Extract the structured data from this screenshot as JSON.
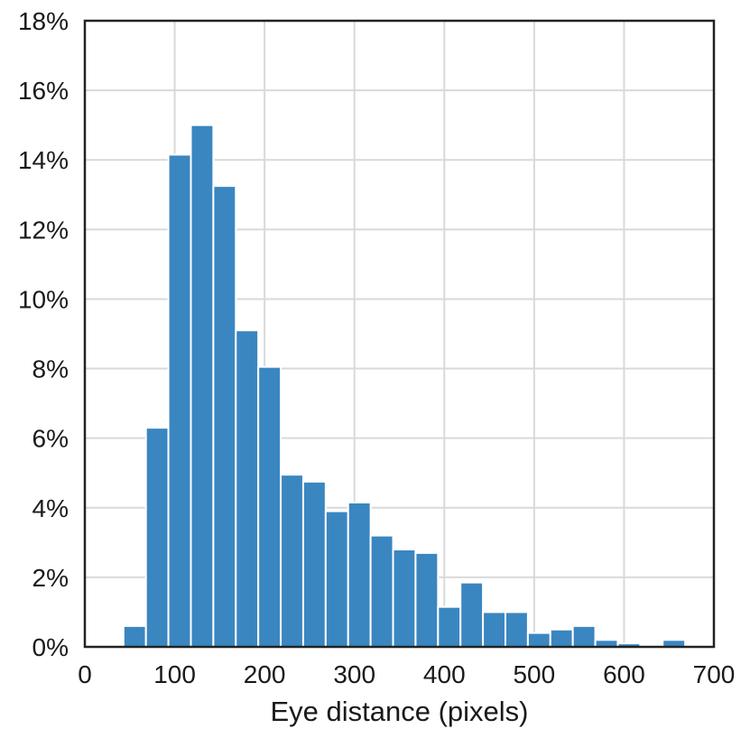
{
  "chart_data": {
    "type": "bar",
    "title": "",
    "xlabel": "Eye distance (pixels)",
    "ylabel": "",
    "xlim": [
      0,
      700
    ],
    "ylim": [
      0,
      18
    ],
    "bin_width": 25,
    "grid": true,
    "legend": "none",
    "bar_color": "#3a86c0",
    "frame_color": "#222222",
    "grid_color": "#d9d9d9",
    "x_ticks": [
      0,
      100,
      200,
      300,
      400,
      500,
      600,
      700
    ],
    "x_tick_labels": [
      "0",
      "100",
      "200",
      "300",
      "400",
      "500",
      "600",
      "700"
    ],
    "y_ticks": [
      0,
      2,
      4,
      6,
      8,
      10,
      12,
      14,
      16,
      18
    ],
    "y_tick_labels": [
      "0%",
      "2%",
      "4%",
      "6%",
      "8%",
      "10%",
      "12%",
      "14%",
      "16%",
      "18%"
    ],
    "bins": [
      {
        "x0": 43,
        "x1": 68,
        "value": 0.6
      },
      {
        "x0": 68,
        "x1": 93,
        "value": 6.3
      },
      {
        "x0": 93,
        "x1": 118,
        "value": 14.15
      },
      {
        "x0": 118,
        "x1": 143,
        "value": 15.0
      },
      {
        "x0": 143,
        "x1": 168,
        "value": 13.25
      },
      {
        "x0": 168,
        "x1": 193,
        "value": 9.1
      },
      {
        "x0": 193,
        "x1": 218,
        "value": 8.05
      },
      {
        "x0": 218,
        "x1": 243,
        "value": 4.95
      },
      {
        "x0": 243,
        "x1": 268,
        "value": 4.75
      },
      {
        "x0": 268,
        "x1": 293,
        "value": 3.9
      },
      {
        "x0": 293,
        "x1": 318,
        "value": 4.15
      },
      {
        "x0": 318,
        "x1": 343,
        "value": 3.2
      },
      {
        "x0": 343,
        "x1": 368,
        "value": 2.8
      },
      {
        "x0": 368,
        "x1": 393,
        "value": 2.7
      },
      {
        "x0": 393,
        "x1": 418,
        "value": 1.15
      },
      {
        "x0": 418,
        "x1": 443,
        "value": 1.85
      },
      {
        "x0": 443,
        "x1": 468,
        "value": 1.0
      },
      {
        "x0": 468,
        "x1": 493,
        "value": 1.0
      },
      {
        "x0": 493,
        "x1": 518,
        "value": 0.4
      },
      {
        "x0": 518,
        "x1": 543,
        "value": 0.5
      },
      {
        "x0": 543,
        "x1": 568,
        "value": 0.6
      },
      {
        "x0": 568,
        "x1": 593,
        "value": 0.2
      },
      {
        "x0": 593,
        "x1": 618,
        "value": 0.1
      },
      {
        "x0": 618,
        "x1": 643,
        "value": 0.0
      },
      {
        "x0": 643,
        "x1": 668,
        "value": 0.2
      }
    ]
  }
}
